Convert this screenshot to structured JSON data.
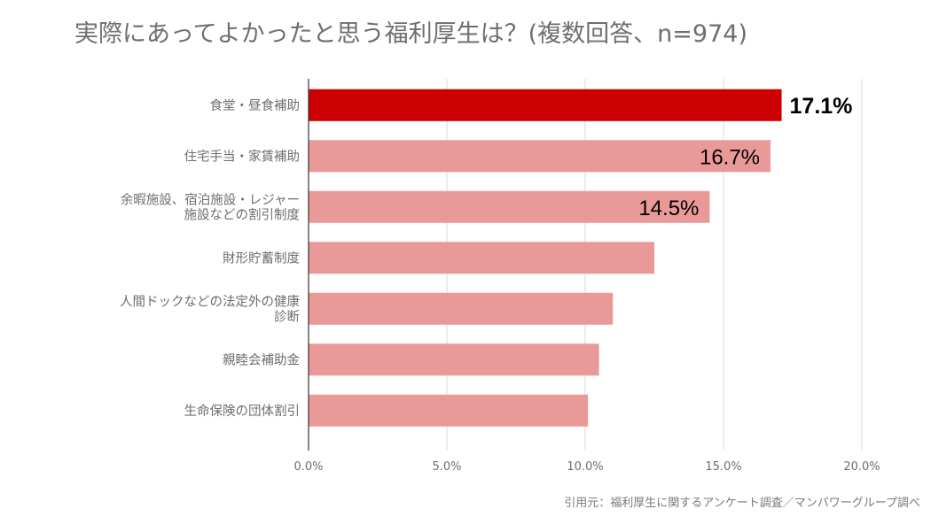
{
  "title": "実際にあってよかったと思う福利厚生は？(複数回答、n=974)",
  "source": "引用元：福利厚生に関するアンケート調査／マンパワーグループ調べ",
  "colors": {
    "highlight": "#cc0000",
    "bar": "#ea9999",
    "grid": "#d9d9d9",
    "axis": "#333333",
    "label": "#6e6e6e"
  },
  "chart_data": {
    "type": "bar",
    "orientation": "horizontal",
    "categories": [
      [
        "食堂・昼食補助"
      ],
      [
        "住宅手当・家賃補助"
      ],
      [
        "余暇施設、宿泊施設・レジャー",
        "施設などの割引制度"
      ],
      [
        "財形貯蓄制度"
      ],
      [
        "人間ドックなどの法定外の健康",
        "診断"
      ],
      [
        "親睦会補助金"
      ],
      [
        "生命保険の団体割引"
      ]
    ],
    "values": [
      17.1,
      16.7,
      14.5,
      12.5,
      11.0,
      10.5,
      10.1
    ],
    "data_labels": [
      "17.1%",
      "16.7%",
      "14.5%",
      null,
      null,
      null,
      null
    ],
    "highlight_index": 0,
    "xlim": [
      0,
      20
    ],
    "xticks": [
      0,
      5,
      10,
      15,
      20
    ],
    "xtick_labels": [
      "0.0%",
      "5.0%",
      "10.0%",
      "15.0%",
      "20.0%"
    ],
    "grid": true,
    "legend": "none"
  }
}
